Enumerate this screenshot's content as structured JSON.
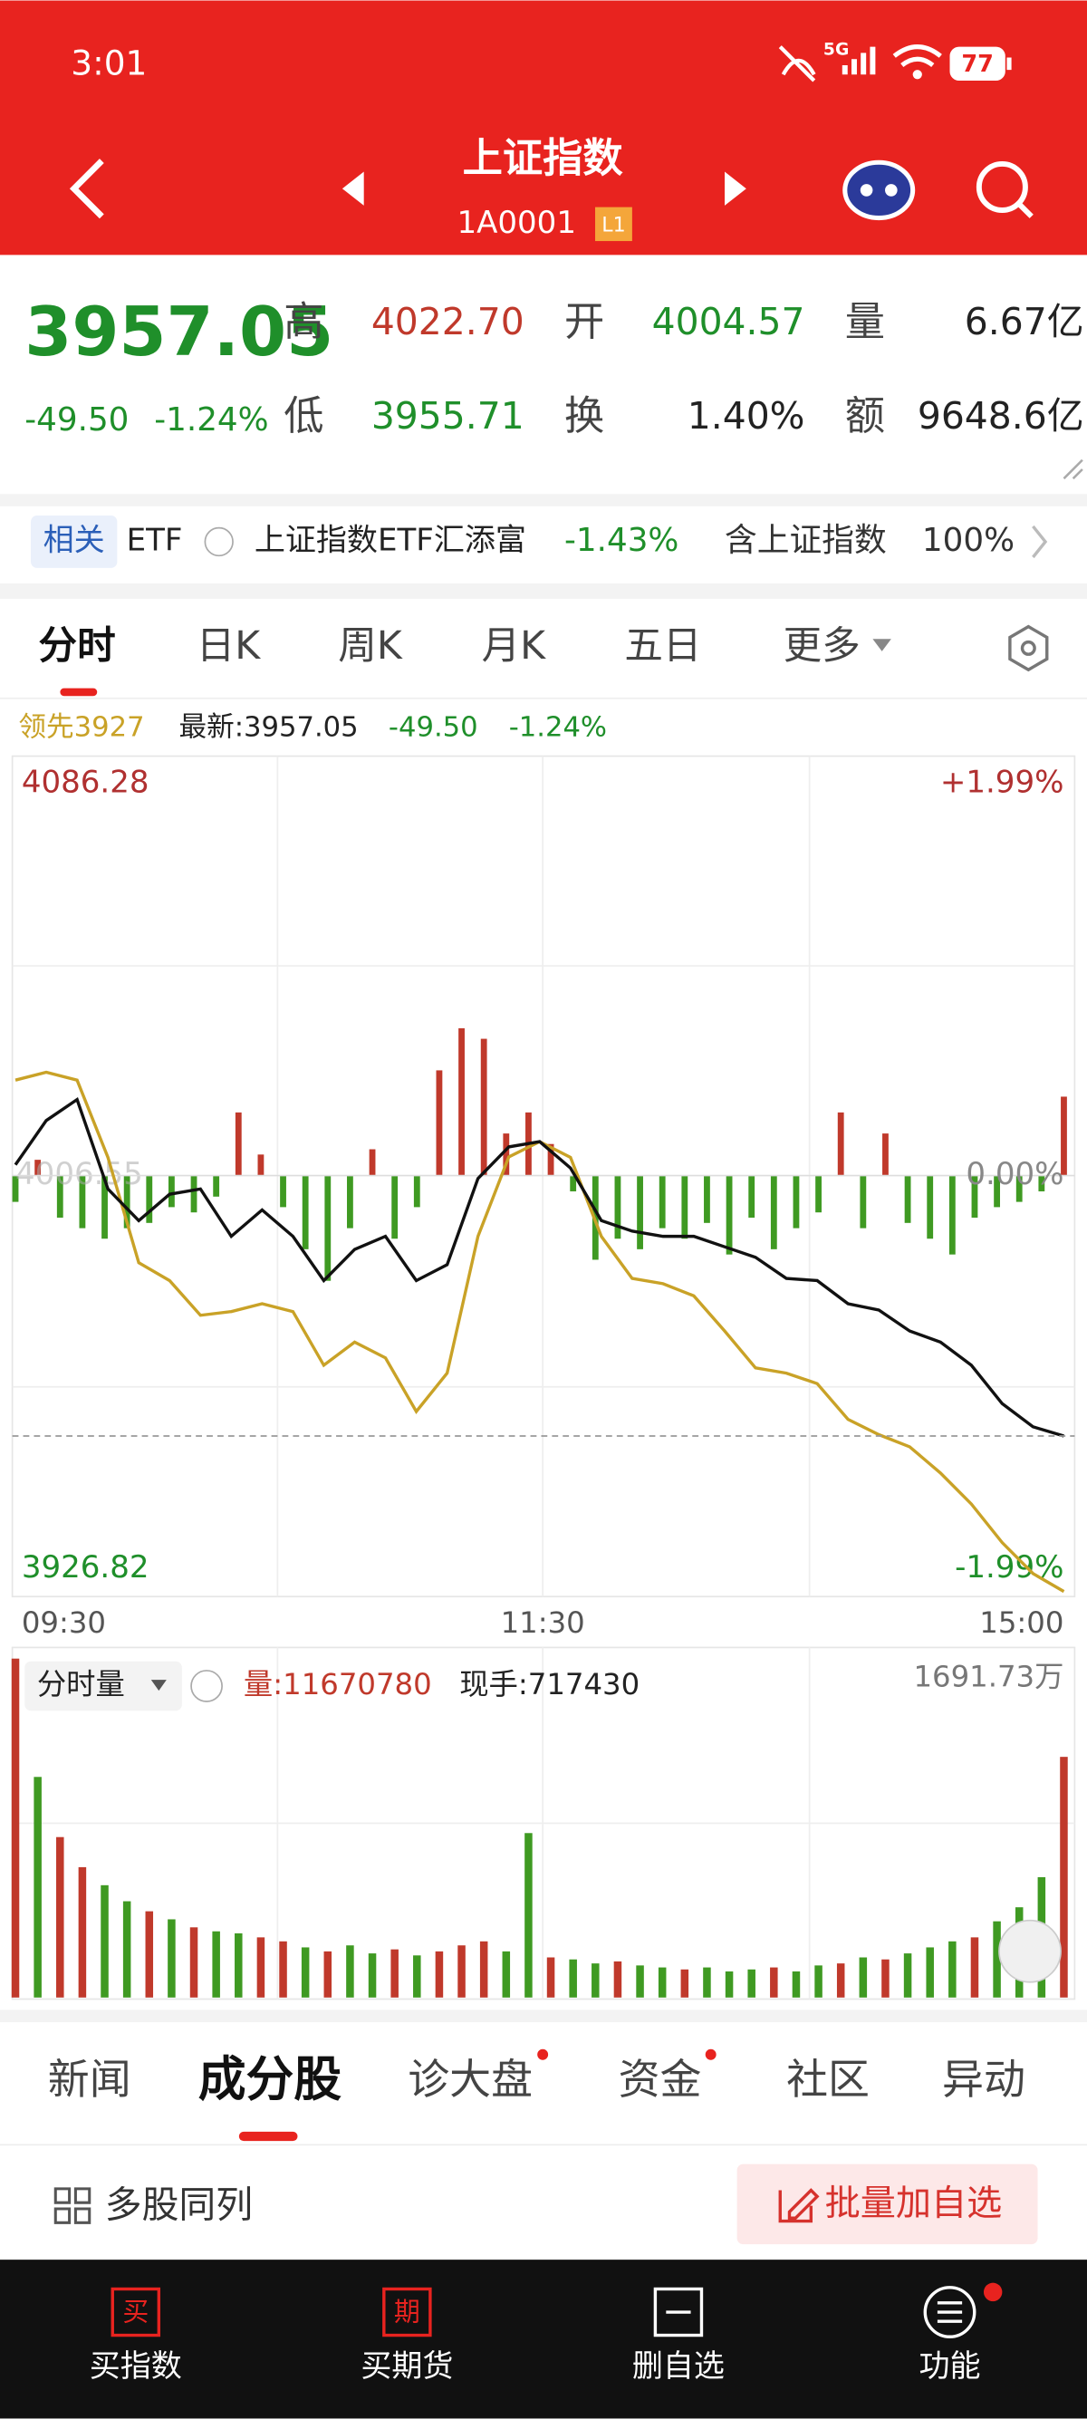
{
  "status": {
    "time": "3:01",
    "network": "5G",
    "battery": "77"
  },
  "header": {
    "title": "上证指数",
    "code": "1A0001",
    "badge": "L1"
  },
  "quote": {
    "price": "3957.05",
    "change": "-49.50",
    "pct": "-1.24%",
    "fields": [
      {
        "label": "高",
        "value": "4022.70",
        "color": "#c0392b"
      },
      {
        "label": "开",
        "value": "4004.57",
        "color": "#1f8f2a"
      },
      {
        "label": "量",
        "value": "6.67亿",
        "color": "#222222"
      },
      {
        "label": "低",
        "value": "3955.71",
        "color": "#1f8f2a"
      },
      {
        "label": "换",
        "value": "1.40%",
        "color": "#222222"
      },
      {
        "label": "额",
        "value": "9648.6亿",
        "color": "#222222"
      }
    ]
  },
  "etf": {
    "tag": "相关",
    "kind": "ETF",
    "name": "上证指数ETF汇添富",
    "pct": "-1.43%",
    "contains": "含上证指数",
    "weight": "100%"
  },
  "tabs": [
    "分时",
    "日K",
    "周K",
    "月K",
    "五日",
    "更多"
  ],
  "legend": {
    "lead": "领先3927",
    "latest": "最新:3957.05",
    "change": "-49.50",
    "pct": "-1.24%"
  },
  "volume_header": {
    "label": "分时量",
    "volume": "量:11670780",
    "hand": "现手:717430"
  },
  "chart_data": [
    {
      "type": "line",
      "ylim": [
        3926.82,
        4086.28
      ],
      "yticks": [
        3926.82,
        4006.55,
        4086.28
      ],
      "y2lim": [
        -1.99,
        1.99
      ],
      "y2ticks": [
        {
          "value": -1.99,
          "label": "-1.99%"
        },
        {
          "value": 0,
          "label": "0.00%"
        },
        {
          "value": 1.99,
          "label": "+1.99%"
        }
      ],
      "xticks": [
        "09:30",
        "11:30",
        "15:00"
      ],
      "series": [
        {
          "color": "#111111",
          "values": [
            4008.6,
            4017,
            4021,
            4004,
            3998,
            4003,
            4004,
            3995,
            4000,
            3995,
            3986.6,
            3992.5,
            3995,
            3986.6,
            3989.6,
            4006,
            4012,
            4013,
            4008,
            3998,
            3996,
            3995,
            3995,
            3993,
            3991,
            3987,
            3986.6,
            3982.2,
            3981,
            3977,
            3974.9,
            3970.5,
            3963.2,
            3958.8,
            3957.05
          ]
        },
        {
          "color": "#c9a227",
          "values": [
            4024.7,
            4026.2,
            4024.7,
            4010,
            3990,
            3986.6,
            3980,
            3980.7,
            3982.2,
            3980.7,
            3970.5,
            3974.9,
            3971.9,
            3961.7,
            3969,
            3995,
            4010.1,
            4013,
            4010,
            3995,
            3987,
            3986,
            3983.7,
            3977,
            3970,
            3969,
            3967,
            3960.2,
            3957.3,
            3955,
            3950,
            3944.1,
            3936.8,
            3930.9,
            3927.5
          ]
        }
      ],
      "bars": {
        "up_color": "#c0392b",
        "down_color": "#3f9a22",
        "values": [
          -5,
          3,
          -8,
          -10,
          -12,
          -10,
          -9,
          -6,
          -7,
          -4,
          12,
          4,
          -6,
          -14,
          -20,
          -10,
          5,
          -12,
          -6,
          20,
          28,
          26,
          8,
          12,
          6,
          -3,
          -16,
          -12,
          -14,
          -10,
          -12,
          -9,
          -15,
          -8,
          -14,
          -10,
          -7,
          12,
          -10,
          8,
          -9,
          -12,
          -15,
          -8,
          -6,
          -5,
          -3,
          15
        ]
      }
    },
    {
      "type": "bar",
      "ylim": [
        0,
        1691.73
      ],
      "yticks": [
        {
          "value": 1691.73,
          "label": "1691.73万"
        }
      ],
      "values": [
        1690,
        1100,
        800,
        650,
        560,
        480,
        430,
        390,
        350,
        330,
        320,
        300,
        280,
        250,
        230,
        260,
        220,
        240,
        210,
        230,
        260,
        280,
        230,
        820,
        200,
        190,
        170,
        180,
        160,
        150,
        140,
        150,
        130,
        140,
        150,
        130,
        160,
        170,
        200,
        190,
        220,
        250,
        280,
        300,
        380,
        450,
        600,
        1200
      ],
      "colors": [
        "#c0392b",
        "#3f9a22",
        "#c0392b",
        "#c0392b",
        "#3f9a22",
        "#3f9a22",
        "#c0392b",
        "#3f9a22",
        "#c0392b",
        "#3f9a22",
        "#3f9a22",
        "#c0392b",
        "#c0392b",
        "#3f9a22",
        "#c0392b",
        "#3f9a22",
        "#3f9a22",
        "#c0392b",
        "#3f9a22",
        "#c0392b",
        "#c0392b",
        "#c0392b",
        "#3f9a22",
        "#3f9a22",
        "#c0392b",
        "#3f9a22",
        "#3f9a22",
        "#c0392b",
        "#3f9a22",
        "#3f9a22",
        "#c0392b",
        "#3f9a22",
        "#3f9a22",
        "#3f9a22",
        "#c0392b",
        "#3f9a22",
        "#3f9a22",
        "#c0392b",
        "#3f9a22",
        "#c0392b",
        "#3f9a22",
        "#3f9a22",
        "#3f9a22",
        "#c0392b",
        "#3f9a22",
        "#3f9a22",
        "#3f9a22",
        "#c0392b"
      ]
    }
  ],
  "subtabs": [
    "新闻",
    "成分股",
    "诊大盘",
    "资金",
    "社区",
    "异动"
  ],
  "toolbar": {
    "left": "多股同列",
    "button": "批量加自选"
  },
  "nav": {
    "icons": [
      "买",
      "期"
    ],
    "labels": [
      "买指数",
      "买期货",
      "删自选",
      "功能"
    ]
  }
}
